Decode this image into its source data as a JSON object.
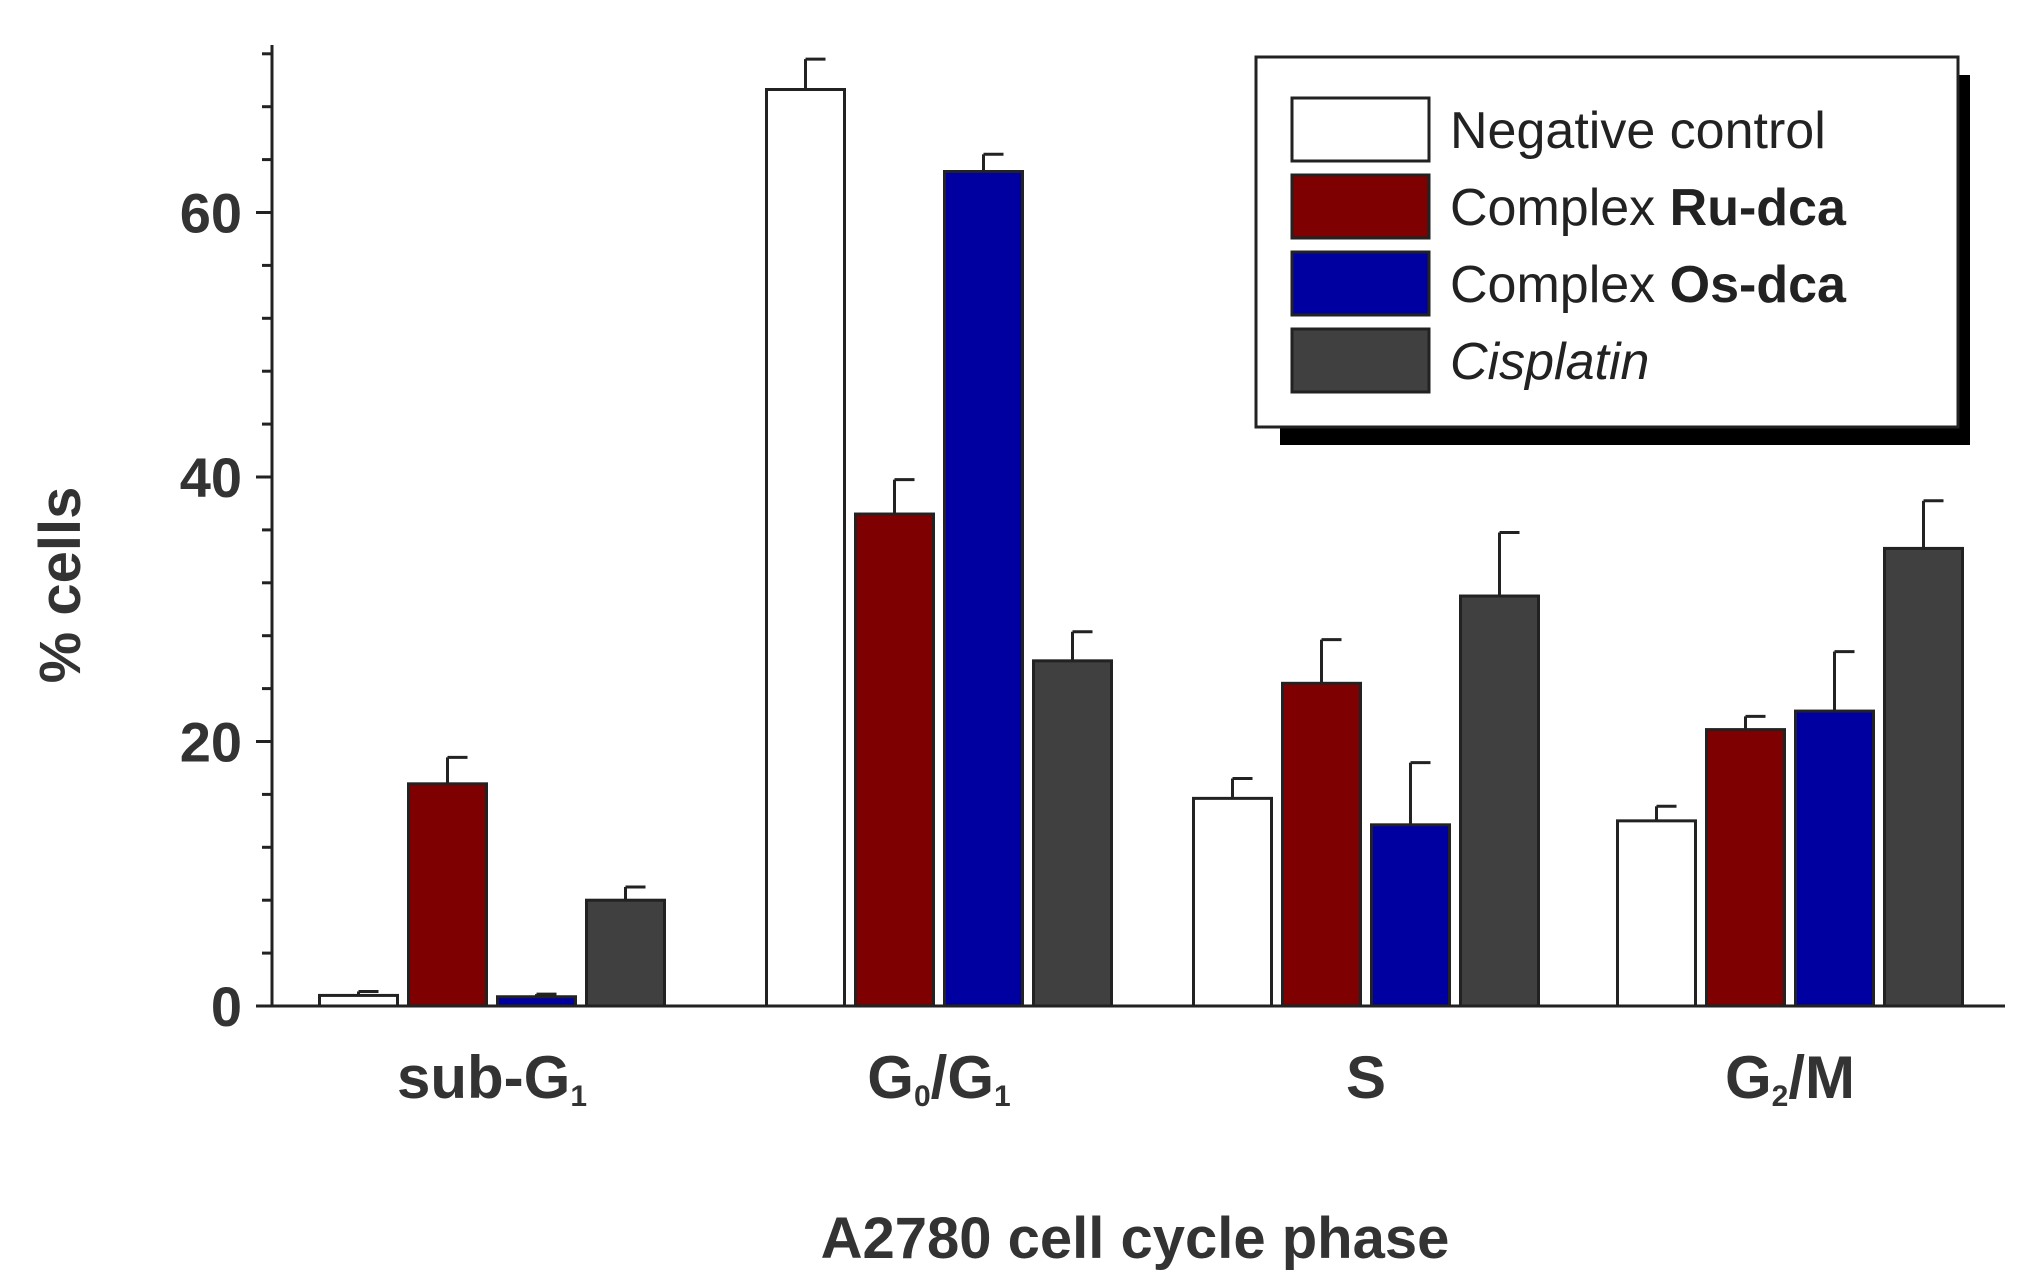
{
  "chart_data": {
    "type": "bar",
    "title": "",
    "xlabel": "A2780 cell cycle phase",
    "ylabel": "% cells",
    "ylim": [
      0,
      72
    ],
    "yticks": [
      0,
      20,
      40,
      60
    ],
    "grid": false,
    "legend_position": "top-right",
    "categories": [
      {
        "base": "sub-G",
        "sub": "1",
        "rest": ""
      },
      {
        "base": "G",
        "sub": "0",
        "rest": "/G",
        "sub2": "1"
      },
      {
        "base": "S",
        "sub": "",
        "rest": ""
      },
      {
        "base": "G",
        "sub": "2",
        "rest": "/M"
      }
    ],
    "series": [
      {
        "name": "Negative control",
        "prefix": "Negative control",
        "bold": "",
        "italic": false,
        "color": "#ffffff",
        "values": [
          0.8,
          69.3,
          15.7,
          14.0
        ],
        "errors": [
          0.3,
          2.3,
          1.5,
          1.1
        ]
      },
      {
        "name": "Complex Ru-dca",
        "prefix": "Complex ",
        "bold": "Ru-dca",
        "italic": false,
        "color": "#7f0000",
        "values": [
          16.8,
          37.2,
          24.4,
          20.9
        ],
        "errors": [
          2.0,
          2.6,
          3.3,
          1.0
        ]
      },
      {
        "name": "Complex Os-dca",
        "prefix": "Complex ",
        "bold": "Os-dca",
        "italic": false,
        "color": "#0000a0",
        "values": [
          0.7,
          63.1,
          13.7,
          22.3
        ],
        "errors": [
          0.2,
          1.3,
          4.7,
          4.5
        ]
      },
      {
        "name": "Cisplatin",
        "prefix": "Cisplatin",
        "bold": "",
        "italic": true,
        "color": "#404040",
        "values": [
          8.0,
          26.1,
          31.0,
          34.6
        ],
        "errors": [
          1.0,
          2.2,
          4.8,
          3.6
        ]
      }
    ]
  }
}
